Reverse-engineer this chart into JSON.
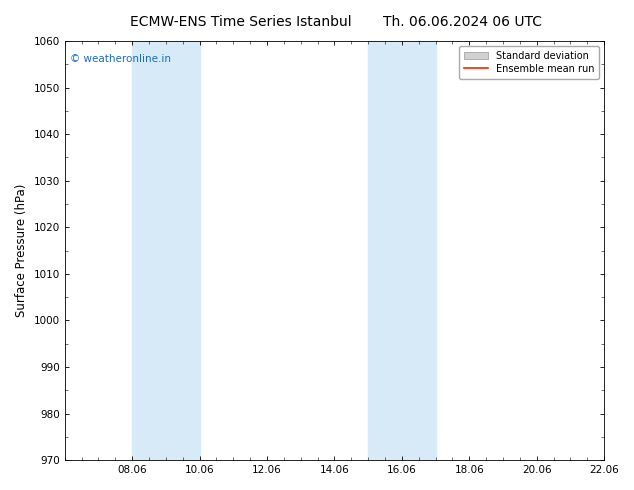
{
  "title_left": "ECMW-ENS Time Series Istanbul",
  "title_right": "Th. 06.06.2024 06 UTC",
  "ylabel": "Surface Pressure (hPa)",
  "ylim": [
    970,
    1060
  ],
  "yticks": [
    970,
    980,
    990,
    1000,
    1010,
    1020,
    1030,
    1040,
    1050,
    1060
  ],
  "xtick_labels": [
    "08.06",
    "10.06",
    "12.06",
    "14.06",
    "16.06",
    "18.06",
    "20.06",
    "22.06"
  ],
  "xtick_positions": [
    2,
    4,
    6,
    8,
    10,
    12,
    14,
    16
  ],
  "xlim_min": 0,
  "xlim_max": 16,
  "shade_bands": [
    {
      "x_start": 2.0,
      "x_end": 4.0
    },
    {
      "x_start": 9.0,
      "x_end": 11.0
    }
  ],
  "watermark_text": "© weatheronline.in",
  "watermark_color": "#1a6bc4",
  "bg_color": "#ffffff",
  "plot_bg_color": "#ffffff",
  "shade_color": "#d6eaf8",
  "legend_std_facecolor": "#d0d0d0",
  "legend_std_edgecolor": "#999999",
  "legend_mean_color": "#ff2200",
  "title_fontsize": 10,
  "tick_fontsize": 7.5,
  "ylabel_fontsize": 8.5,
  "watermark_fontsize": 7.5,
  "legend_fontsize": 7
}
